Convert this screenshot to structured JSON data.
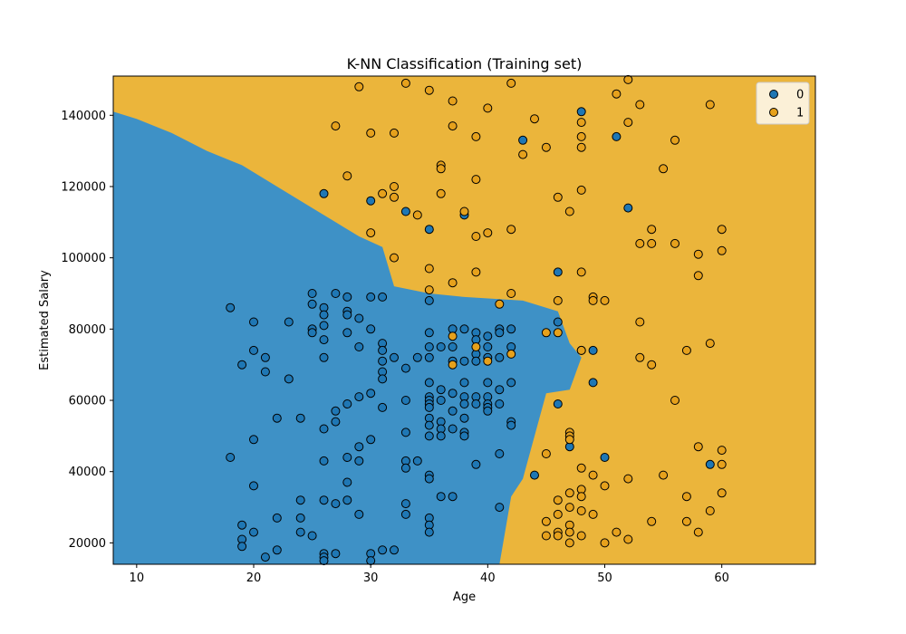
{
  "chart_data": {
    "type": "scatter",
    "title": "K-NN Classification (Training set)",
    "xlabel": "Age",
    "ylabel": "Estimated Salary",
    "xlim": [
      8,
      68
    ],
    "ylim": [
      14000,
      151000
    ],
    "xticks": [
      10,
      20,
      30,
      40,
      50,
      60
    ],
    "yticks": [
      20000,
      40000,
      60000,
      80000,
      100000,
      120000,
      140000
    ],
    "xtick_labels": [
      "10",
      "20",
      "30",
      "40",
      "50",
      "60"
    ],
    "ytick_labels": [
      "20000",
      "40000",
      "60000",
      "80000",
      "100000",
      "120000",
      "140000"
    ],
    "grid": false,
    "legend_position": "top-right",
    "colors": {
      "class_0": "#1f77b4",
      "class_1": "#e6a11c",
      "region_0": "#3e91c6",
      "region_1": "#ebb53b"
    },
    "legend": [
      {
        "label": "0",
        "color": "#1f77b4"
      },
      {
        "label": "1",
        "color": "#e6a11c"
      }
    ],
    "decision_boundary": [
      [
        8,
        141000
      ],
      [
        10,
        139000
      ],
      [
        13,
        135000
      ],
      [
        16,
        130000
      ],
      [
        19,
        126000
      ],
      [
        22,
        120000
      ],
      [
        25,
        114000
      ],
      [
        27,
        110000
      ],
      [
        29,
        106000
      ],
      [
        31,
        103000
      ],
      [
        32,
        92000
      ],
      [
        35,
        90000
      ],
      [
        38,
        89000
      ],
      [
        43,
        88000
      ],
      [
        46,
        85000
      ],
      [
        47,
        76000
      ],
      [
        48,
        72000
      ],
      [
        47,
        63000
      ],
      [
        45,
        62000
      ],
      [
        44,
        50000
      ],
      [
        43,
        38000
      ],
      [
        42,
        33000
      ],
      [
        41,
        14000
      ]
    ],
    "series": [
      {
        "name": "0",
        "points": [
          [
            18,
            86000
          ],
          [
            18,
            44000
          ],
          [
            19,
            70000
          ],
          [
            19,
            25000
          ],
          [
            19,
            21000
          ],
          [
            19,
            19000
          ],
          [
            20,
            82000
          ],
          [
            20,
            74000
          ],
          [
            20,
            49000
          ],
          [
            20,
            36000
          ],
          [
            20,
            23000
          ],
          [
            21,
            72000
          ],
          [
            21,
            68000
          ],
          [
            21,
            16000
          ],
          [
            22,
            55000
          ],
          [
            22,
            27000
          ],
          [
            22,
            18000
          ],
          [
            23,
            82000
          ],
          [
            23,
            66000
          ],
          [
            24,
            55000
          ],
          [
            24,
            32000
          ],
          [
            24,
            27000
          ],
          [
            24,
            23000
          ],
          [
            25,
            90000
          ],
          [
            25,
            87000
          ],
          [
            25,
            80000
          ],
          [
            25,
            79000
          ],
          [
            25,
            22000
          ],
          [
            26,
            86000
          ],
          [
            26,
            84000
          ],
          [
            26,
            81000
          ],
          [
            26,
            77000
          ],
          [
            26,
            72000
          ],
          [
            26,
            52000
          ],
          [
            26,
            43000
          ],
          [
            26,
            32000
          ],
          [
            26,
            17000
          ],
          [
            26,
            16000
          ],
          [
            26,
            15000
          ],
          [
            26,
            118000
          ],
          [
            27,
            90000
          ],
          [
            27,
            57000
          ],
          [
            27,
            54000
          ],
          [
            27,
            31000
          ],
          [
            27,
            17000
          ],
          [
            28,
            89000
          ],
          [
            28,
            85000
          ],
          [
            28,
            84000
          ],
          [
            28,
            79000
          ],
          [
            28,
            59000
          ],
          [
            28,
            44000
          ],
          [
            28,
            37000
          ],
          [
            28,
            32000
          ],
          [
            29,
            83000
          ],
          [
            29,
            75000
          ],
          [
            29,
            61000
          ],
          [
            29,
            47000
          ],
          [
            29,
            43000
          ],
          [
            29,
            28000
          ],
          [
            30,
            89000
          ],
          [
            30,
            80000
          ],
          [
            30,
            62000
          ],
          [
            30,
            49000
          ],
          [
            30,
            17000
          ],
          [
            30,
            15000
          ],
          [
            30,
            116000
          ],
          [
            31,
            89000
          ],
          [
            31,
            76000
          ],
          [
            31,
            74000
          ],
          [
            31,
            71000
          ],
          [
            31,
            68000
          ],
          [
            31,
            66000
          ],
          [
            31,
            58000
          ],
          [
            31,
            18000
          ],
          [
            32,
            72000
          ],
          [
            32,
            18000
          ],
          [
            33,
            69000
          ],
          [
            33,
            60000
          ],
          [
            33,
            51000
          ],
          [
            33,
            43000
          ],
          [
            33,
            41000
          ],
          [
            33,
            31000
          ],
          [
            33,
            28000
          ],
          [
            33,
            113000
          ],
          [
            34,
            72000
          ],
          [
            34,
            43000
          ],
          [
            35,
            88000
          ],
          [
            35,
            79000
          ],
          [
            35,
            75000
          ],
          [
            35,
            72000
          ],
          [
            35,
            65000
          ],
          [
            35,
            61000
          ],
          [
            35,
            60000
          ],
          [
            35,
            59000
          ],
          [
            35,
            58000
          ],
          [
            35,
            55000
          ],
          [
            35,
            53000
          ],
          [
            35,
            50000
          ],
          [
            35,
            39000
          ],
          [
            35,
            38000
          ],
          [
            35,
            27000
          ],
          [
            35,
            25000
          ],
          [
            35,
            23000
          ],
          [
            35,
            108000
          ],
          [
            36,
            75000
          ],
          [
            36,
            63000
          ],
          [
            36,
            60000
          ],
          [
            36,
            54000
          ],
          [
            36,
            52000
          ],
          [
            36,
            50000
          ],
          [
            36,
            33000
          ],
          [
            37,
            80000
          ],
          [
            37,
            75000
          ],
          [
            37,
            71000
          ],
          [
            37,
            62000
          ],
          [
            37,
            57000
          ],
          [
            37,
            52000
          ],
          [
            37,
            33000
          ],
          [
            38,
            80000
          ],
          [
            38,
            71000
          ],
          [
            38,
            65000
          ],
          [
            38,
            61000
          ],
          [
            38,
            59000
          ],
          [
            38,
            55000
          ],
          [
            38,
            51000
          ],
          [
            38,
            50000
          ],
          [
            38,
            112000
          ],
          [
            39,
            79000
          ],
          [
            39,
            77000
          ],
          [
            39,
            73000
          ],
          [
            39,
            71000
          ],
          [
            39,
            61000
          ],
          [
            39,
            59000
          ],
          [
            39,
            42000
          ],
          [
            40,
            78000
          ],
          [
            40,
            75000
          ],
          [
            40,
            72000
          ],
          [
            40,
            65000
          ],
          [
            40,
            61000
          ],
          [
            40,
            59000
          ],
          [
            40,
            58000
          ],
          [
            40,
            57000
          ],
          [
            41,
            80000
          ],
          [
            41,
            79000
          ],
          [
            41,
            72000
          ],
          [
            41,
            63000
          ],
          [
            41,
            59000
          ],
          [
            41,
            45000
          ],
          [
            41,
            30000
          ],
          [
            42,
            80000
          ],
          [
            42,
            75000
          ],
          [
            42,
            65000
          ],
          [
            42,
            54000
          ],
          [
            42,
            53000
          ],
          [
            43,
            133000
          ],
          [
            44,
            39000
          ],
          [
            46,
            96000
          ],
          [
            46,
            82000
          ],
          [
            46,
            59000
          ],
          [
            47,
            47000
          ],
          [
            48,
            141000
          ],
          [
            48,
            74000
          ],
          [
            49,
            74000
          ],
          [
            49,
            65000
          ],
          [
            50,
            44000
          ],
          [
            51,
            134000
          ],
          [
            52,
            114000
          ],
          [
            59,
            42000
          ]
        ]
      },
      {
        "name": "1",
        "points": [
          [
            27,
            137000
          ],
          [
            28,
            123000
          ],
          [
            29,
            148000
          ],
          [
            30,
            135000
          ],
          [
            30,
            107000
          ],
          [
            31,
            118000
          ],
          [
            32,
            135000
          ],
          [
            32,
            120000
          ],
          [
            32,
            117000
          ],
          [
            32,
            100000
          ],
          [
            33,
            149000
          ],
          [
            34,
            112000
          ],
          [
            35,
            147000
          ],
          [
            35,
            97000
          ],
          [
            35,
            91000
          ],
          [
            36,
            126000
          ],
          [
            36,
            125000
          ],
          [
            36,
            118000
          ],
          [
            37,
            144000
          ],
          [
            37,
            137000
          ],
          [
            37,
            93000
          ],
          [
            37,
            78000
          ],
          [
            37,
            70000
          ],
          [
            38,
            113000
          ],
          [
            39,
            134000
          ],
          [
            39,
            122000
          ],
          [
            39,
            106000
          ],
          [
            39,
            96000
          ],
          [
            39,
            75000
          ],
          [
            40,
            142000
          ],
          [
            40,
            107000
          ],
          [
            40,
            71000
          ],
          [
            41,
            87000
          ],
          [
            42,
            149000
          ],
          [
            42,
            108000
          ],
          [
            42,
            90000
          ],
          [
            42,
            73000
          ],
          [
            43,
            129000
          ],
          [
            44,
            139000
          ],
          [
            45,
            131000
          ],
          [
            45,
            79000
          ],
          [
            45,
            45000
          ],
          [
            45,
            26000
          ],
          [
            45,
            22000
          ],
          [
            46,
            117000
          ],
          [
            46,
            88000
          ],
          [
            46,
            79000
          ],
          [
            46,
            32000
          ],
          [
            46,
            28000
          ],
          [
            46,
            23000
          ],
          [
            46,
            22000
          ],
          [
            47,
            113000
          ],
          [
            47,
            51000
          ],
          [
            47,
            50000
          ],
          [
            47,
            49000
          ],
          [
            47,
            34000
          ],
          [
            47,
            30000
          ],
          [
            47,
            25000
          ],
          [
            47,
            23000
          ],
          [
            47,
            20000
          ],
          [
            48,
            138000
          ],
          [
            48,
            134000
          ],
          [
            48,
            131000
          ],
          [
            48,
            119000
          ],
          [
            48,
            96000
          ],
          [
            48,
            74000
          ],
          [
            48,
            41000
          ],
          [
            48,
            35000
          ],
          [
            48,
            33000
          ],
          [
            48,
            29000
          ],
          [
            48,
            22000
          ],
          [
            49,
            89000
          ],
          [
            49,
            88000
          ],
          [
            49,
            39000
          ],
          [
            49,
            28000
          ],
          [
            50,
            88000
          ],
          [
            50,
            36000
          ],
          [
            50,
            20000
          ],
          [
            51,
            146000
          ],
          [
            51,
            23000
          ],
          [
            52,
            150000
          ],
          [
            52,
            138000
          ],
          [
            52,
            38000
          ],
          [
            52,
            21000
          ],
          [
            53,
            143000
          ],
          [
            53,
            104000
          ],
          [
            53,
            82000
          ],
          [
            53,
            72000
          ],
          [
            54,
            108000
          ],
          [
            54,
            104000
          ],
          [
            54,
            70000
          ],
          [
            54,
            26000
          ],
          [
            55,
            125000
          ],
          [
            55,
            39000
          ],
          [
            56,
            133000
          ],
          [
            56,
            104000
          ],
          [
            56,
            60000
          ],
          [
            57,
            74000
          ],
          [
            57,
            33000
          ],
          [
            57,
            26000
          ],
          [
            58,
            101000
          ],
          [
            58,
            95000
          ],
          [
            58,
            47000
          ],
          [
            58,
            23000
          ],
          [
            59,
            143000
          ],
          [
            59,
            76000
          ],
          [
            59,
            29000
          ],
          [
            60,
            108000
          ],
          [
            60,
            102000
          ],
          [
            60,
            46000
          ],
          [
            60,
            42000
          ],
          [
            60,
            34000
          ]
        ]
      }
    ]
  }
}
